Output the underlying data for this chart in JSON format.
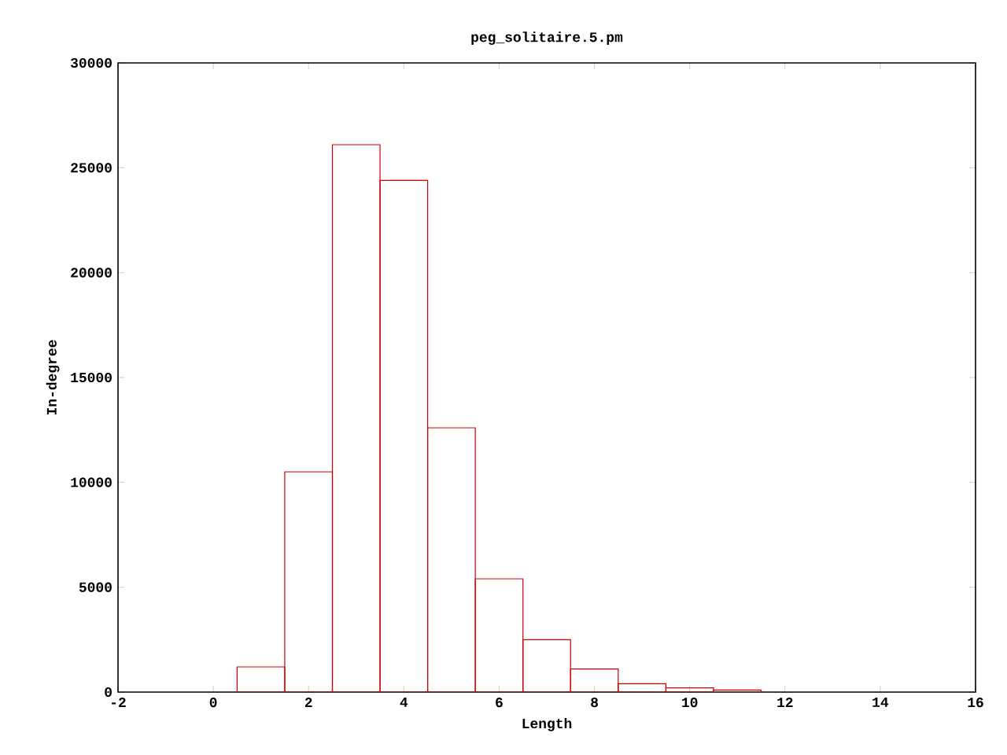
{
  "chart_data": {
    "type": "histogram",
    "title": "peg_solitaire.5.pm",
    "xlabel": "Length",
    "ylabel": "In-degree",
    "color": "#cc0000",
    "bins": [
      0.5,
      1.5,
      2.5,
      3.5,
      4.5,
      5.5,
      6.5,
      7.5,
      8.5,
      9.5,
      10.5,
      11.5
    ],
    "values": [
      1200,
      10500,
      26100,
      24400,
      12600,
      5400,
      2500,
      1100,
      400,
      200,
      100
    ],
    "xlim": [
      -2,
      16
    ],
    "xticks": [
      -2,
      0,
      2,
      4,
      6,
      8,
      10,
      12,
      14,
      16
    ],
    "ylim": [
      0,
      30000
    ],
    "yticks": [
      0,
      5000,
      10000,
      15000,
      20000,
      25000,
      30000
    ],
    "grid": false
  }
}
